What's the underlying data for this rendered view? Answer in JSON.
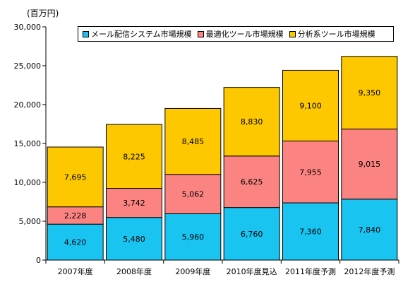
{
  "unit_label": "(百万円)",
  "colors": {
    "mail": "#19c4f1",
    "optimize": "#fb8482",
    "analysis": "#fdc800",
    "axis": "#000000"
  },
  "chart_data": {
    "type": "bar",
    "stacked": true,
    "categories": [
      "2007年度",
      "2008年度",
      "2009年度",
      "2010年度見込",
      "2011年度予測",
      "2012年度予測"
    ],
    "series": [
      {
        "name": "メール配信システム市場規模",
        "key": "mail",
        "values": [
          4620,
          5480,
          5960,
          6760,
          7360,
          7840
        ],
        "labels": [
          "4,620",
          "5,480",
          "5,960",
          "6,760",
          "7,360",
          "7,840"
        ]
      },
      {
        "name": "最適化ツール市場規模",
        "key": "optimize",
        "values": [
          2228,
          3742,
          5062,
          6625,
          7955,
          9015
        ],
        "labels": [
          "2,228",
          "3,742",
          "5,062",
          "6,625",
          "7,955",
          "9,015"
        ]
      },
      {
        "name": "分析系ツール市場規模",
        "key": "analysis",
        "values": [
          7695,
          8225,
          8485,
          8830,
          9100,
          9350
        ],
        "labels": [
          "7,695",
          "8,225",
          "8,485",
          "8,830",
          "9,100",
          "9,350"
        ]
      }
    ],
    "ylim": [
      0,
      30000
    ],
    "yticks": [
      0,
      5000,
      10000,
      15000,
      20000,
      25000,
      30000
    ],
    "ytick_labels": [
      "0",
      "5,000",
      "10,000",
      "15,000",
      "20,000",
      "25,000",
      "30,000"
    ],
    "legend_position": "top-right",
    "grid": false
  }
}
